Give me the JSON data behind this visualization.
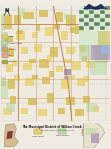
{
  "bg": "#f0ebe0",
  "map_bg": "#ffffff",
  "title": "The Municipal District of Willow Creek No. 26",
  "colors": {
    "crown": "#e8d060",
    "crown2": "#d4b840",
    "green_light": "#b8d8a0",
    "green_forest": "#90c070",
    "purple": "#9070b0",
    "water_blue": "#90c0e0",
    "road_brown": "#c08040",
    "road_tan": "#d4a870",
    "grid_major": "#cccccc",
    "grid_minor": "#e0e0e0",
    "border": "#555555",
    "inset_border": "#777777",
    "checker_green": "#608860",
    "checker_lt": "#d8e8d0",
    "pink_fill": "#e8a090",
    "olive": "#a0a840",
    "tan_map": "#d0b888"
  },
  "outer_bg": "#ddd8cc"
}
